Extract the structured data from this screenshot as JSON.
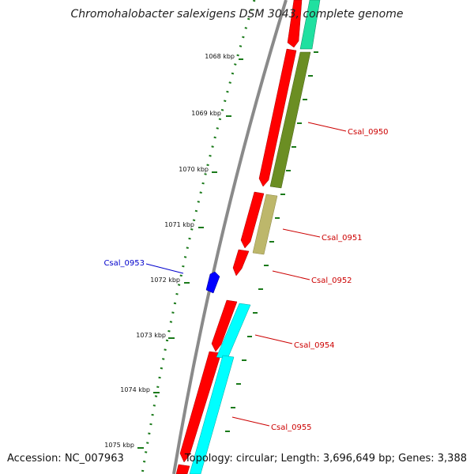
{
  "title": "Chromohalobacter salexigens DSM 3043, complete genome",
  "footer": {
    "accession": "Accession: NC_007963",
    "stats": "Topology: circular; Length: 3,696,649 bp; Genes: 3,388"
  },
  "colors": {
    "backbone": "#8a8a8a",
    "cds_red": "#ff0000",
    "cyan": "#00ffff",
    "teal": "#20e0a0",
    "olive": "#6b8e23",
    "khaki": "#bdb76b",
    "blue": "#0000ff",
    "gc_dots": "#1a7a1a",
    "label_red": "#cc0000",
    "label_blue": "#0000cc"
  },
  "tick_labels": [
    "1068 kbp",
    "1069 kbp",
    "1070 kbp",
    "1071 kbp",
    "1072 kbp",
    "1073 kbp",
    "1074 kbp",
    "1075 kbp"
  ],
  "gene_labels": [
    {
      "id": "csal0950",
      "text": "Csal_0950",
      "color": "red"
    },
    {
      "id": "csal0951",
      "text": "Csal_0951",
      "color": "red"
    },
    {
      "id": "csal0952",
      "text": "Csal_0952",
      "color": "red"
    },
    {
      "id": "csal0953",
      "text": "Csal_0953",
      "color": "blue"
    },
    {
      "id": "csal0954",
      "text": "Csal_0954",
      "color": "red"
    },
    {
      "id": "csal0955",
      "text": "Csal_0955",
      "color": "red"
    }
  ]
}
